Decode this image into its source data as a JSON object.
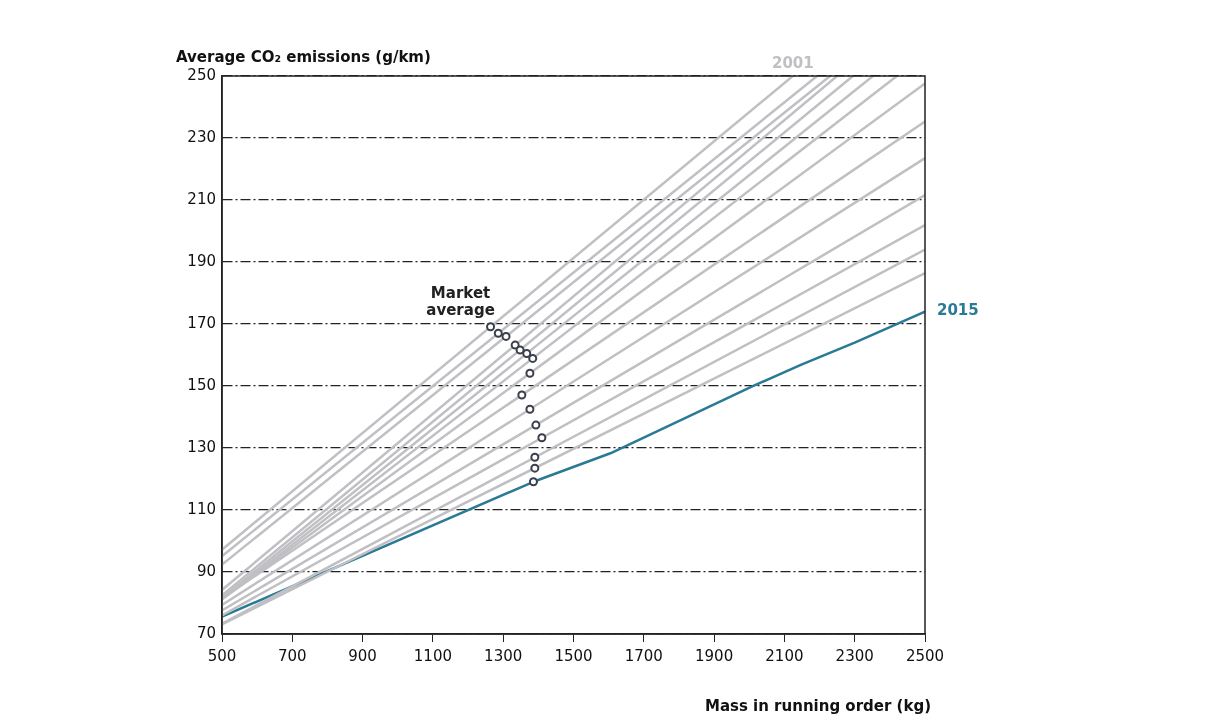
{
  "chart_data": {
    "type": "line",
    "xlabel": "Mass in running order (kg)",
    "ylabel": "Average CO₂ emissions (g/km)",
    "xlim": [
      500,
      2500
    ],
    "xticks": [
      500,
      700,
      900,
      1100,
      1300,
      1500,
      1700,
      1900,
      2100,
      2300,
      2500
    ],
    "ylim": [
      70,
      250
    ],
    "yticks": [
      70,
      90,
      110,
      130,
      150,
      170,
      190,
      210,
      230,
      250
    ],
    "grid": "y",
    "legend": false,
    "marker": "none",
    "line_style": "solid",
    "series": [
      {
        "name": "2001",
        "color": "#c0bfc3",
        "x": [
          500,
          2124
        ],
        "values": [
          97.2,
          250
        ]
      },
      {
        "color": "#c0bfc3",
        "x": [
          500,
          2193
        ],
        "values": [
          95.1,
          250
        ]
      },
      {
        "color": "#c0bfc3",
        "x": [
          500,
          2230
        ],
        "values": [
          92.4,
          250
        ]
      },
      {
        "color": "#c0bfc3",
        "x": [
          500,
          2250
        ],
        "values": [
          84.2,
          250
        ]
      },
      {
        "color": "#c0bfc3",
        "x": [
          500,
          2295
        ],
        "values": [
          82.5,
          250
        ]
      },
      {
        "color": "#c0bfc3",
        "x": [
          500,
          2352
        ],
        "values": [
          81.7,
          250
        ]
      },
      {
        "color": "#c0bfc3",
        "x": [
          500,
          2420
        ],
        "values": [
          81.2,
          250
        ]
      },
      {
        "color": "#c0bfc3",
        "x": [
          500,
          2500
        ],
        "values": [
          81.2,
          247.6
        ]
      },
      {
        "color": "#c0bfc3",
        "x": [
          500,
          2500
        ],
        "values": [
          81.5,
          235.3
        ]
      },
      {
        "color": "#c0bfc3",
        "x": [
          500,
          2500
        ],
        "values": [
          79.4,
          223.5
        ]
      },
      {
        "color": "#c0bfc3",
        "x": [
          500,
          2500
        ],
        "values": [
          77.6,
          211.6
        ]
      },
      {
        "color": "#c0bfc3",
        "x": [
          500,
          2500
        ],
        "values": [
          76,
          201.9
        ]
      },
      {
        "color": "#c0bfc3",
        "x": [
          500,
          2500
        ],
        "values": [
          73.3,
          194
        ]
      },
      {
        "color": "#c0bfc3",
        "x": [
          500,
          2500
        ],
        "values": [
          73.1,
          186.4
        ]
      },
      {
        "name": "2015",
        "color": "#2a7a95",
        "x": [
          500,
          1386,
          1605,
          2007,
          2150,
          2300,
          2500
        ],
        "values": [
          75.6,
          119.1,
          128.3,
          149.8,
          157,
          164,
          174
        ]
      },
      {
        "name": "Market average",
        "type": "scatter",
        "marker": "circle",
        "color": "#3a3f4b",
        "x": [
          1264,
          1286,
          1308,
          1334,
          1348,
          1367,
          1384,
          1376,
          1353,
          1376,
          1393,
          1410,
          1390,
          1390,
          1386
        ],
        "values": [
          169.1,
          167,
          166,
          163.2,
          161.6,
          160.5,
          158.9,
          154.1,
          147.1,
          142.5,
          137.4,
          133.3,
          127,
          123.5,
          119.1
        ]
      }
    ]
  }
}
